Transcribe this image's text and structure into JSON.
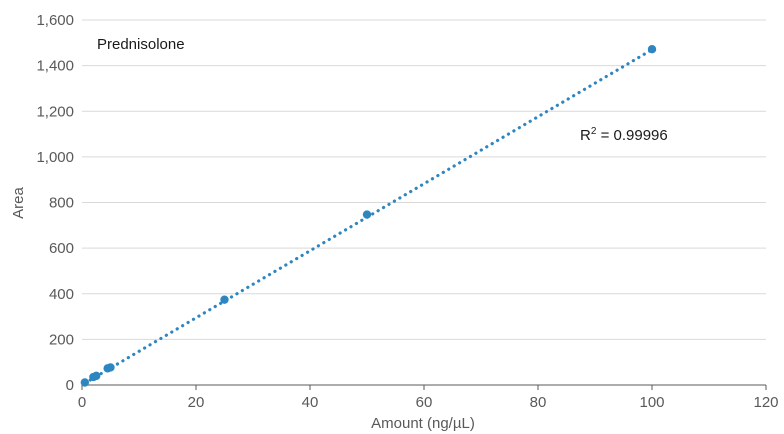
{
  "chart_data": {
    "type": "scatter",
    "title": "",
    "xlabel": "Amount (ng/µL)",
    "ylabel": "Area",
    "xlim": [
      0,
      120
    ],
    "ylim": [
      0,
      1600
    ],
    "x_ticks": [
      0,
      20,
      40,
      60,
      80,
      100,
      120
    ],
    "x_tick_labels": [
      "0",
      "20",
      "40",
      "60",
      "80",
      "100",
      "120"
    ],
    "y_ticks": [
      0,
      200,
      400,
      600,
      800,
      1000,
      1200,
      1400,
      1600
    ],
    "y_tick_labels": [
      "0",
      "200",
      "400",
      "600",
      "800",
      "1,000",
      "1,200",
      "1,400",
      "1,600"
    ],
    "grid": {
      "horizontal": true,
      "vertical": false
    },
    "series": [
      {
        "name": "Prednisolone",
        "color": "#2e86c1",
        "x": [
          0.5,
          2,
          2.5,
          4.5,
          5,
          25,
          50,
          100
        ],
        "y": [
          11,
          35,
          40,
          73,
          77,
          374,
          747,
          1472
        ]
      }
    ],
    "trendline": {
      "type": "linear",
      "style": "dotted",
      "color": "#2e86c1",
      "x_range": [
        0.5,
        100
      ],
      "y_range": [
        8,
        1470
      ]
    },
    "annotations": {
      "label": "Prednisolone",
      "r2_prefix": "R",
      "r2_sup": "2",
      "r2_value": " = 0.99996"
    }
  }
}
